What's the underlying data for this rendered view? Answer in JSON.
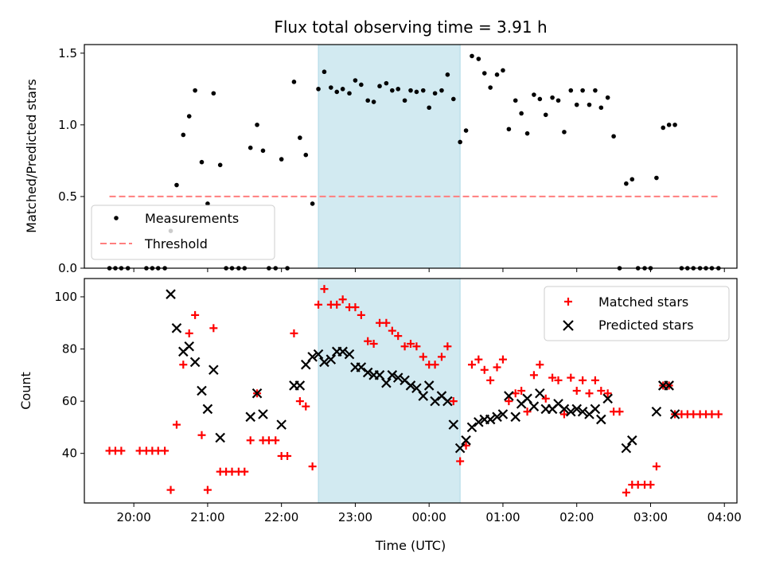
{
  "chart_data": {
    "type": "scatter",
    "title": "Flux total observing time = 3.91 h",
    "xlabel": "Time (UTC)",
    "x_ticks": [
      "20:00",
      "21:00",
      "22:00",
      "23:00",
      "00:00",
      "01:00",
      "02:00",
      "03:00",
      "04:00"
    ],
    "x_range_hours": [
      19.33,
      28.17
    ],
    "shaded_span_hours": [
      22.5,
      24.42
    ],
    "shade_color": "#add8e6",
    "top_panel": {
      "ylabel": "Matched/Predicted stars",
      "ylim": [
        0,
        1.56
      ],
      "yticks": [
        "0.0",
        "0.5",
        "1.0",
        "1.5"
      ],
      "legend_position": "lower-left",
      "series": [
        {
          "name": "Measurements",
          "marker": "dot",
          "color": "#000000",
          "points": [
            [
              19.67,
              0
            ],
            [
              19.75,
              0
            ],
            [
              19.83,
              0
            ],
            [
              19.92,
              0
            ],
            [
              20.17,
              0
            ],
            [
              20.25,
              0
            ],
            [
              20.33,
              0
            ],
            [
              20.42,
              0
            ],
            [
              20.5,
              0.26
            ],
            [
              20.58,
              0.58
            ],
            [
              20.67,
              0.93
            ],
            [
              20.75,
              1.06
            ],
            [
              20.83,
              1.24
            ],
            [
              20.92,
              0.74
            ],
            [
              21.0,
              0.45
            ],
            [
              21.08,
              1.22
            ],
            [
              21.17,
              0.72
            ],
            [
              21.25,
              0
            ],
            [
              21.33,
              0
            ],
            [
              21.42,
              0
            ],
            [
              21.5,
              0
            ],
            [
              21.58,
              0.84
            ],
            [
              21.67,
              1.0
            ],
            [
              21.75,
              0.82
            ],
            [
              21.83,
              0
            ],
            [
              21.92,
              0
            ],
            [
              22.0,
              0.76
            ],
            [
              22.08,
              0
            ],
            [
              22.17,
              1.3
            ],
            [
              22.25,
              0.91
            ],
            [
              22.33,
              0.79
            ],
            [
              22.42,
              0.45
            ],
            [
              22.5,
              1.25
            ],
            [
              22.58,
              1.37
            ],
            [
              22.67,
              1.26
            ],
            [
              22.75,
              1.23
            ],
            [
              22.83,
              1.25
            ],
            [
              22.92,
              1.22
            ],
            [
              23.0,
              1.31
            ],
            [
              23.08,
              1.28
            ],
            [
              23.17,
              1.17
            ],
            [
              23.25,
              1.16
            ],
            [
              23.33,
              1.27
            ],
            [
              23.42,
              1.29
            ],
            [
              23.5,
              1.24
            ],
            [
              23.58,
              1.25
            ],
            [
              23.67,
              1.17
            ],
            [
              23.75,
              1.24
            ],
            [
              23.83,
              1.23
            ],
            [
              23.92,
              1.24
            ],
            [
              24.0,
              1.12
            ],
            [
              24.08,
              1.22
            ],
            [
              24.17,
              1.24
            ],
            [
              24.25,
              1.35
            ],
            [
              24.33,
              1.18
            ],
            [
              24.42,
              0.88
            ],
            [
              24.5,
              0.96
            ],
            [
              24.58,
              1.48
            ],
            [
              24.67,
              1.46
            ],
            [
              24.75,
              1.36
            ],
            [
              24.83,
              1.26
            ],
            [
              24.92,
              1.35
            ],
            [
              25.0,
              1.38
            ],
            [
              25.08,
              0.97
            ],
            [
              25.17,
              1.17
            ],
            [
              25.25,
              1.08
            ],
            [
              25.33,
              0.94
            ],
            [
              25.42,
              1.21
            ],
            [
              25.5,
              1.18
            ],
            [
              25.58,
              1.07
            ],
            [
              25.67,
              1.19
            ],
            [
              25.75,
              1.17
            ],
            [
              25.83,
              0.95
            ],
            [
              25.92,
              1.24
            ],
            [
              26.0,
              1.14
            ],
            [
              26.08,
              1.24
            ],
            [
              26.17,
              1.14
            ],
            [
              26.25,
              1.24
            ],
            [
              26.33,
              1.12
            ],
            [
              26.42,
              1.19
            ],
            [
              26.5,
              0.92
            ],
            [
              26.58,
              0
            ],
            [
              26.67,
              0.59
            ],
            [
              26.75,
              0.62
            ],
            [
              26.83,
              0
            ],
            [
              26.92,
              0
            ],
            [
              27.0,
              0
            ],
            [
              27.08,
              0.63
            ],
            [
              27.17,
              0.98
            ],
            [
              27.25,
              1.0
            ],
            [
              27.33,
              1.0
            ],
            [
              27.42,
              0
            ],
            [
              27.5,
              0
            ],
            [
              27.58,
              0
            ],
            [
              27.67,
              0
            ],
            [
              27.75,
              0
            ],
            [
              27.83,
              0
            ],
            [
              27.92,
              0
            ]
          ]
        },
        {
          "name": "Threshold",
          "line": "dashed",
          "color": "#ff7f7f",
          "points": [
            [
              19.67,
              0.5
            ],
            [
              27.92,
              0.5
            ]
          ]
        }
      ]
    },
    "bottom_panel": {
      "ylabel": "Count",
      "ylim": [
        21,
        107
      ],
      "yticks": [
        "40",
        "60",
        "80",
        "100"
      ],
      "legend_position": "upper-right",
      "series": [
        {
          "name": "Matched stars",
          "marker": "plus",
          "color": "#ff0000",
          "points": [
            [
              19.67,
              41
            ],
            [
              19.75,
              41
            ],
            [
              19.83,
              41
            ],
            [
              20.08,
              41
            ],
            [
              20.17,
              41
            ],
            [
              20.25,
              41
            ],
            [
              20.33,
              41
            ],
            [
              20.42,
              41
            ],
            [
              20.5,
              26
            ],
            [
              20.58,
              51
            ],
            [
              20.67,
              74
            ],
            [
              20.75,
              86
            ],
            [
              20.83,
              93
            ],
            [
              20.92,
              47
            ],
            [
              21.0,
              26
            ],
            [
              21.08,
              88
            ],
            [
              21.17,
              33
            ],
            [
              21.25,
              33
            ],
            [
              21.33,
              33
            ],
            [
              21.42,
              33
            ],
            [
              21.5,
              33
            ],
            [
              21.58,
              45
            ],
            [
              21.67,
              63
            ],
            [
              21.75,
              45
            ],
            [
              21.83,
              45
            ],
            [
              21.92,
              45
            ],
            [
              22.0,
              39
            ],
            [
              22.08,
              39
            ],
            [
              22.17,
              86
            ],
            [
              22.25,
              60
            ],
            [
              22.33,
              58
            ],
            [
              22.42,
              35
            ],
            [
              22.5,
              97
            ],
            [
              22.58,
              103
            ],
            [
              22.67,
              97
            ],
            [
              22.75,
              97
            ],
            [
              22.83,
              99
            ],
            [
              22.92,
              96
            ],
            [
              23.0,
              96
            ],
            [
              23.08,
              93
            ],
            [
              23.17,
              83
            ],
            [
              23.25,
              82
            ],
            [
              23.33,
              90
            ],
            [
              23.42,
              90
            ],
            [
              23.5,
              87
            ],
            [
              23.58,
              85
            ],
            [
              23.67,
              81
            ],
            [
              23.75,
              82
            ],
            [
              23.83,
              81
            ],
            [
              23.92,
              77
            ],
            [
              24.0,
              74
            ],
            [
              24.08,
              74
            ],
            [
              24.17,
              77
            ],
            [
              24.25,
              81
            ],
            [
              24.33,
              60
            ],
            [
              24.42,
              37
            ],
            [
              24.5,
              43
            ],
            [
              24.58,
              74
            ],
            [
              24.67,
              76
            ],
            [
              24.75,
              72
            ],
            [
              24.83,
              68
            ],
            [
              24.92,
              73
            ],
            [
              25.0,
              76
            ],
            [
              25.08,
              60
            ],
            [
              25.17,
              63
            ],
            [
              25.25,
              64
            ],
            [
              25.33,
              56
            ],
            [
              25.42,
              70
            ],
            [
              25.5,
              74
            ],
            [
              25.58,
              61
            ],
            [
              25.67,
              69
            ],
            [
              25.75,
              68
            ],
            [
              25.83,
              55
            ],
            [
              25.92,
              69
            ],
            [
              26.0,
              64
            ],
            [
              26.08,
              68
            ],
            [
              26.17,
              63
            ],
            [
              26.25,
              68
            ],
            [
              26.33,
              64
            ],
            [
              26.42,
              63
            ],
            [
              26.5,
              56
            ],
            [
              26.58,
              56
            ],
            [
              26.67,
              25
            ],
            [
              26.75,
              28
            ],
            [
              26.83,
              28
            ],
            [
              26.92,
              28
            ],
            [
              27.0,
              28
            ],
            [
              27.08,
              35
            ],
            [
              27.17,
              66
            ],
            [
              27.25,
              66
            ],
            [
              27.33,
              55
            ],
            [
              27.42,
              55
            ],
            [
              27.5,
              55
            ],
            [
              27.58,
              55
            ],
            [
              27.67,
              55
            ],
            [
              27.75,
              55
            ],
            [
              27.83,
              55
            ],
            [
              27.92,
              55
            ]
          ]
        },
        {
          "name": "Predicted stars",
          "marker": "x",
          "color": "#000000",
          "points": [
            [
              20.5,
              101
            ],
            [
              20.58,
              88
            ],
            [
              20.67,
              79
            ],
            [
              20.75,
              81
            ],
            [
              20.83,
              75
            ],
            [
              20.92,
              64
            ],
            [
              21.0,
              57
            ],
            [
              21.08,
              72
            ],
            [
              21.17,
              46
            ],
            [
              21.58,
              54
            ],
            [
              21.67,
              63
            ],
            [
              21.75,
              55
            ],
            [
              22.0,
              51
            ],
            [
              22.17,
              66
            ],
            [
              22.25,
              66
            ],
            [
              22.33,
              74
            ],
            [
              22.42,
              77
            ],
            [
              22.5,
              78
            ],
            [
              22.58,
              75
            ],
            [
              22.67,
              76
            ],
            [
              22.75,
              79
            ],
            [
              22.83,
              79
            ],
            [
              22.92,
              78
            ],
            [
              23.0,
              73
            ],
            [
              23.08,
              73
            ],
            [
              23.17,
              71
            ],
            [
              23.25,
              70
            ],
            [
              23.33,
              70
            ],
            [
              23.42,
              67
            ],
            [
              23.5,
              70
            ],
            [
              23.58,
              69
            ],
            [
              23.67,
              68
            ],
            [
              23.75,
              66
            ],
            [
              23.83,
              65
            ],
            [
              23.92,
              62
            ],
            [
              24.0,
              66
            ],
            [
              24.08,
              60
            ],
            [
              24.17,
              62
            ],
            [
              24.25,
              60
            ],
            [
              24.33,
              51
            ],
            [
              24.42,
              42
            ],
            [
              24.5,
              45
            ],
            [
              24.58,
              50
            ],
            [
              24.67,
              52
            ],
            [
              24.75,
              53
            ],
            [
              24.83,
              53
            ],
            [
              24.92,
              54
            ],
            [
              25.0,
              55
            ],
            [
              25.08,
              62
            ],
            [
              25.17,
              54
            ],
            [
              25.25,
              59
            ],
            [
              25.33,
              61
            ],
            [
              25.42,
              58
            ],
            [
              25.5,
              63
            ],
            [
              25.58,
              57
            ],
            [
              25.67,
              57
            ],
            [
              25.75,
              59
            ],
            [
              25.83,
              57
            ],
            [
              25.92,
              56
            ],
            [
              26.0,
              57
            ],
            [
              26.08,
              56
            ],
            [
              26.17,
              55
            ],
            [
              26.25,
              57
            ],
            [
              26.33,
              53
            ],
            [
              26.42,
              61
            ],
            [
              26.67,
              42
            ],
            [
              26.75,
              45
            ],
            [
              27.08,
              56
            ],
            [
              27.17,
              66
            ],
            [
              27.25,
              66
            ],
            [
              27.33,
              55
            ]
          ]
        }
      ]
    }
  }
}
